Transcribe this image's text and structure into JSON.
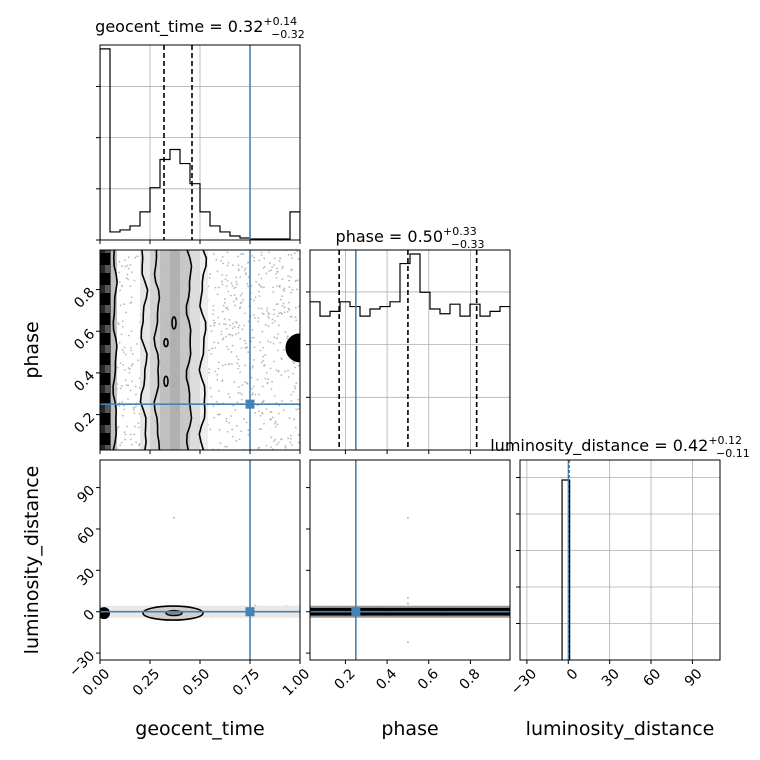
{
  "colors": {
    "truth": "#4682b4",
    "hist": "#000000",
    "grid": "#b0b0b0",
    "scatter": "#b8b8b8"
  },
  "chart_data": {
    "type": "corner",
    "parameters": [
      "geocent_time",
      "phase",
      "luminosity_distance"
    ],
    "axis_labels": [
      "geocent_time",
      "phase",
      "luminosity_distance"
    ],
    "truths": [
      0.75,
      0.25,
      0.0
    ],
    "ranges": [
      [
        0.0,
        1.0
      ],
      [
        0.03,
        0.99
      ],
      [
        -35,
        110
      ]
    ],
    "titles": [
      {
        "param": "geocent_time",
        "median": "0.32",
        "plus": "+0.14",
        "minus": "−0.32"
      },
      {
        "param": "phase",
        "median": "0.50",
        "plus": "+0.33",
        "minus": "−0.33"
      },
      {
        "param": "luminosity_distance",
        "median": "0.42",
        "plus": "+0.12",
        "minus": "−0.11"
      }
    ],
    "quantiles": [
      [
        0.32,
        0.46
      ],
      [
        0.17,
        0.5,
        0.83
      ],
      [
        0.31,
        0.42,
        0.54
      ]
    ],
    "ticks": {
      "geocent_time": [
        "0.00",
        "0.25",
        "0.50",
        "0.75",
        "1.00"
      ],
      "phase": [
        "0.2",
        "0.4",
        "0.6",
        "0.8"
      ],
      "luminosity_distance": [
        "−30",
        "0",
        "30",
        "60",
        "90"
      ]
    },
    "tick_values": {
      "geocent_time": [
        0.0,
        0.25,
        0.5,
        0.75,
        1.0
      ],
      "phase": [
        0.2,
        0.4,
        0.6,
        0.8
      ],
      "luminosity_distance": [
        -30,
        0,
        30,
        60,
        90
      ]
    },
    "histograms": {
      "geocent_time": {
        "edges": [
          0.0,
          0.05,
          0.1,
          0.15,
          0.2,
          0.25,
          0.3,
          0.35,
          0.4,
          0.45,
          0.5,
          0.55,
          0.6,
          0.65,
          0.7,
          0.75,
          0.8,
          0.85,
          0.9,
          0.95,
          1.0
        ],
        "counts": [
          0.95,
          0.04,
          0.05,
          0.07,
          0.14,
          0.26,
          0.4,
          0.45,
          0.38,
          0.28,
          0.14,
          0.07,
          0.04,
          0.02,
          0.01,
          0.005,
          0.005,
          0.005,
          0.005,
          0.14
        ]
      },
      "phase": {
        "edges": [
          0.03,
          0.078,
          0.126,
          0.174,
          0.222,
          0.27,
          0.318,
          0.366,
          0.414,
          0.462,
          0.51,
          0.558,
          0.606,
          0.654,
          0.702,
          0.75,
          0.798,
          0.846,
          0.894,
          0.942,
          0.99
        ],
        "counts": [
          0.62,
          0.56,
          0.58,
          0.62,
          0.6,
          0.56,
          0.59,
          0.6,
          0.62,
          0.78,
          0.82,
          0.66,
          0.59,
          0.57,
          0.61,
          0.56,
          0.61,
          0.56,
          0.58,
          0.6
        ]
      },
      "luminosity_distance": {
        "edges": [
          -4.5,
          1.0
        ],
        "counts": [
          1.0
        ]
      }
    }
  }
}
